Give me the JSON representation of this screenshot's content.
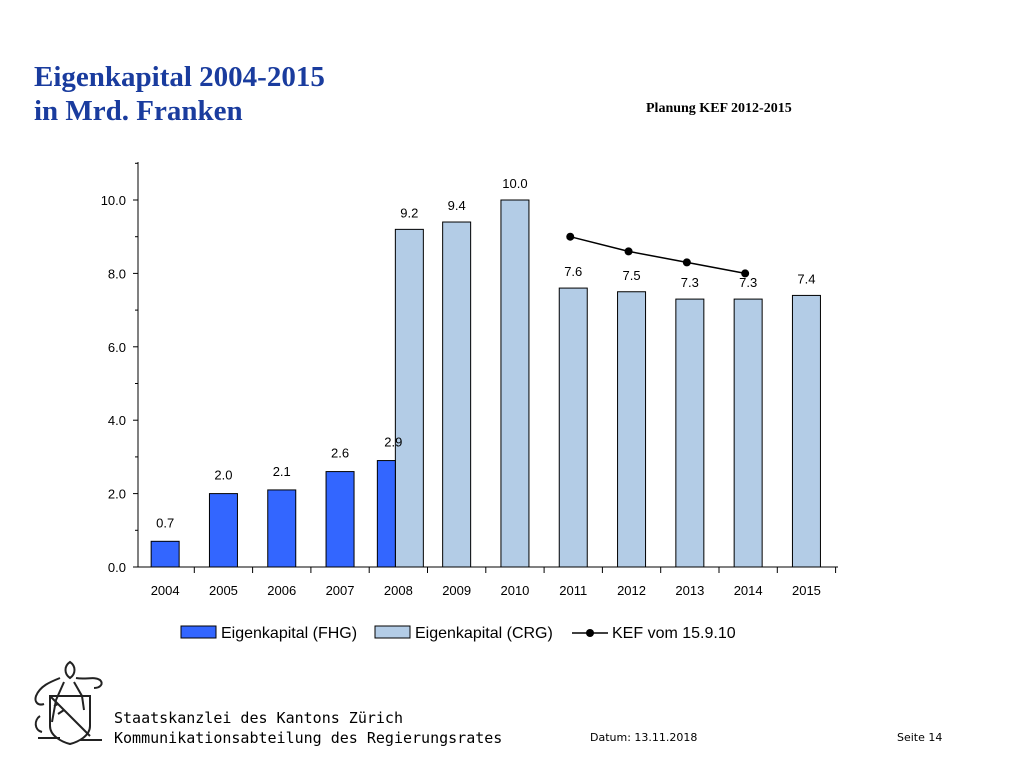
{
  "header": {
    "title_line1": "Eigenkapital 2004-2015",
    "title_line2": "in Mrd. Franken",
    "planning_note": "Planung KEF 2012-2015"
  },
  "chart_data": {
    "type": "bar",
    "categories": [
      "2004",
      "2005",
      "2006",
      "2007",
      "2008",
      "2009",
      "2010",
      "2011",
      "2012",
      "2013",
      "2014",
      "2015"
    ],
    "ylim": [
      0,
      11
    ],
    "yticks": [
      "0.0",
      "2.0",
      "4.0",
      "6.0",
      "8.0",
      "10.0"
    ],
    "series": [
      {
        "name": "Eigenkapital (FHG)",
        "type": "bar",
        "color": "#3366ff",
        "values": [
          0.7,
          2.0,
          2.1,
          2.6,
          2.9,
          null,
          null,
          null,
          null,
          null,
          null,
          null
        ],
        "labels": [
          "0.7",
          "2.0",
          "2.1",
          "2.6",
          "2.9",
          "",
          "",
          "",
          "",
          "",
          "",
          ""
        ]
      },
      {
        "name": "Eigenkapital (CRG)",
        "type": "bar",
        "color": "#b3cce6",
        "values": [
          null,
          null,
          null,
          null,
          9.2,
          9.4,
          10.0,
          7.6,
          7.5,
          7.3,
          7.3,
          7.4
        ],
        "labels": [
          "",
          "",
          "",
          "",
          "9.2",
          "9.4",
          "10.0",
          "7.6",
          "7.5",
          "7.3",
          "7.3",
          "7.4"
        ]
      },
      {
        "name": "KEF vom 15.9.10",
        "type": "line",
        "color": "#000000",
        "values": [
          null,
          null,
          null,
          null,
          null,
          null,
          null,
          9.0,
          8.6,
          8.3,
          8.0,
          null
        ]
      }
    ],
    "legend": "bottom"
  },
  "footer": {
    "org_line1": "Staatskanzlei des Kantons Zürich",
    "org_line2": "Kommunikationsabteilung des Regierungsrates",
    "date": "Datum: 13.11.2018",
    "page": "Seite 14"
  },
  "icons": {
    "logo": "zurich-lion-coat-of-arms-icon"
  }
}
